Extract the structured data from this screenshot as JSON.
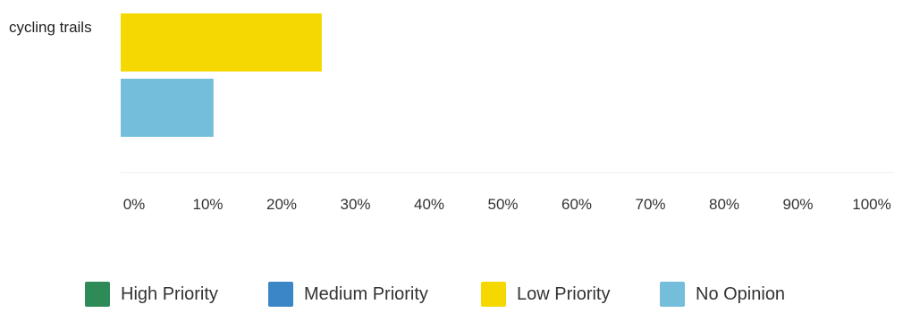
{
  "chart_data": {
    "type": "bar",
    "orientation": "horizontal",
    "categories": [
      "cycling trails"
    ],
    "series": [
      {
        "name": "High Priority",
        "color": "#2e8b57",
        "values": [
          0
        ]
      },
      {
        "name": "Medium Priority",
        "color": "#3b86c6",
        "values": [
          0
        ]
      },
      {
        "name": "Low Priority",
        "color": "#f5d800",
        "values": [
          26
        ]
      },
      {
        "name": "No Opinion",
        "color": "#74bedb",
        "values": [
          12
        ]
      }
    ],
    "xlim": [
      0,
      100
    ],
    "x_ticks": [
      "0%",
      "10%",
      "20%",
      "30%",
      "40%",
      "50%",
      "60%",
      "70%",
      "80%",
      "90%",
      "100%"
    ],
    "grid": false,
    "legend_position": "bottom"
  }
}
